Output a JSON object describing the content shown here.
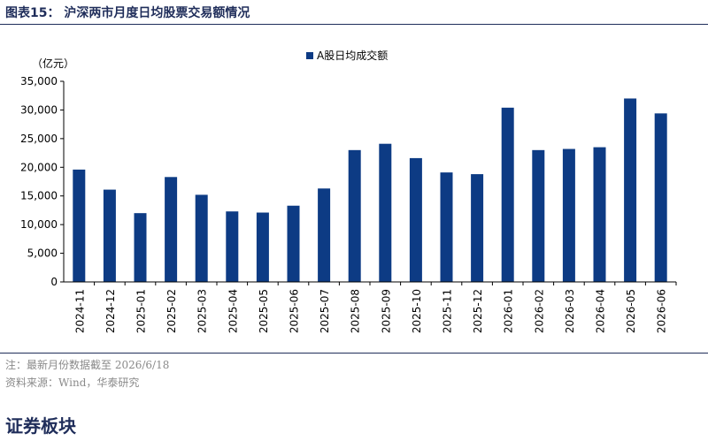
{
  "figure": {
    "title": "图表15：   沪深两市月度日均股票交易额情况"
  },
  "chart_data": {
    "type": "bar",
    "unit_label": "（亿元）",
    "categories": [
      "2024-11",
      "2024-12",
      "2025-01",
      "2025-02",
      "2025-03",
      "2025-04",
      "2025-05",
      "2025-06",
      "2025-07",
      "2025-08",
      "2025-09",
      "2025-10",
      "2025-11",
      "2025-12",
      "2026-01",
      "2026-02",
      "2026-03",
      "2026-04",
      "2026-05",
      "2026-06"
    ],
    "series": [
      {
        "name": "A股日均成交额",
        "color": "#0d3b84",
        "values": [
          19600,
          16100,
          12000,
          18300,
          15200,
          12300,
          12100,
          13300,
          16300,
          23000,
          24100,
          21600,
          19100,
          18800,
          30400,
          23000,
          23200,
          23500,
          32000,
          29400
        ]
      }
    ],
    "y_ticks": [
      "0",
      "5,000",
      "10,000",
      "15,000",
      "20,000",
      "25,000",
      "30,000",
      "35,000"
    ],
    "ylim": [
      0,
      35000
    ],
    "grid": false,
    "legend_position": "top-center"
  },
  "notes": {
    "note": "注：最新月份数据截至 2026/6/18",
    "source": "资料来源：Wind，华泰研究"
  },
  "section": {
    "title": "证券板块"
  }
}
